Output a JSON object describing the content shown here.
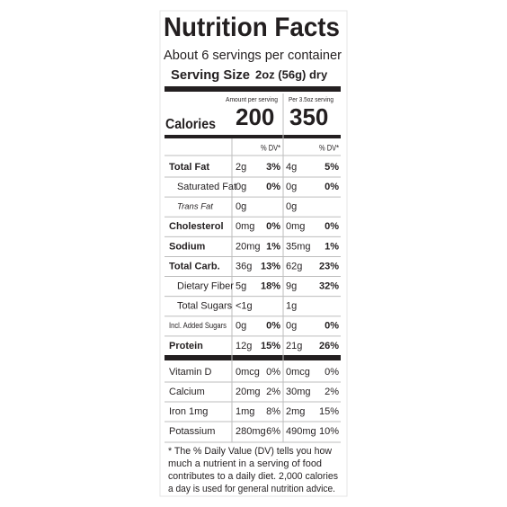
{
  "header": {
    "title": "Nutrition Facts",
    "servings": "About 6 servings per container",
    "serving_size_label": "Serving Size",
    "serving_size_value": "2oz (56g) dry"
  },
  "calories": {
    "label": "Calories",
    "per_serving_label": "Amount per serving",
    "per_serving_value": "200",
    "per_alt_label": "Per 3.5oz serving",
    "per_alt_value": "350"
  },
  "dv_headers": [
    "% DV*",
    "% DV*"
  ],
  "nutrients": [
    [
      "Total Fat",
      "2g",
      "3%",
      "4g",
      "5%"
    ],
    [
      "Saturated Fat",
      "0g",
      "0%",
      "0g",
      "0%"
    ],
    [
      "Trans Fat",
      "0g",
      null,
      "0g",
      null
    ],
    [
      "Cholesterol",
      "0mg",
      "0%",
      "0mg",
      "0%"
    ],
    [
      "Sodium",
      "20mg",
      "1%",
      "35mg",
      "1%"
    ],
    [
      "Total Carb.",
      "36g",
      "13%",
      "62g",
      "23%"
    ],
    [
      "Dietary Fiber",
      "5g",
      "18%",
      "9g",
      "32%"
    ],
    [
      "Total Sugars",
      "<1g",
      null,
      "1g",
      null
    ],
    [
      "Incl. Added Sugars",
      "0g",
      "0%",
      "0g",
      "0%"
    ],
    [
      "Protein",
      "12g",
      "15%",
      "21g",
      "26%"
    ]
  ],
  "vitamins": [
    [
      "Vitamin D",
      "0mcg",
      "0%",
      "0mcg",
      "0%"
    ],
    [
      "Calcium",
      "20mg",
      "2%",
      "30mg",
      "2%"
    ],
    [
      "Iron 1mg",
      "1mg",
      "8%",
      "2mg",
      "15%"
    ],
    [
      "Potassium",
      "280mg",
      "6%",
      "490mg",
      "10%"
    ]
  ],
  "footnote": [
    "* The % Daily Value (DV) tells you how",
    "much a nutrient in a serving of food",
    "contributes to a daily diet. 2,000 calories",
    "a day is used for general nutrition advice."
  ]
}
